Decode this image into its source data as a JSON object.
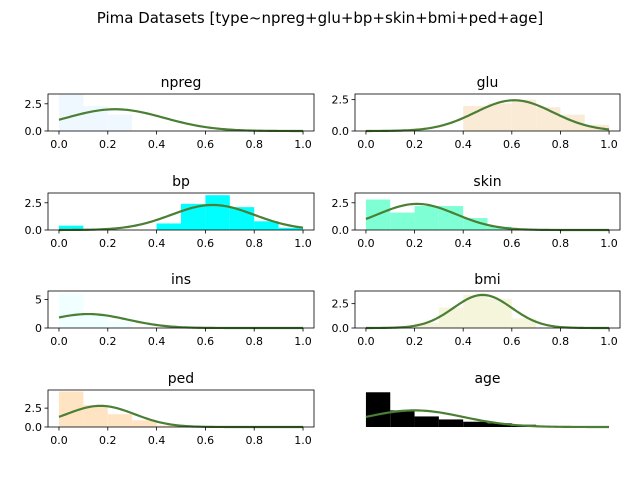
{
  "chart_data": {
    "type": "bar",
    "title": "Pima Datasets [type~npreg+glu+bp+skin+bmi+ped+age]",
    "panels": [
      {
        "title": "npreg",
        "color": "#f0f8ff",
        "curve_color": "#4a7f34",
        "bins": [
          0,
          0.1,
          0.2,
          0.3
        ],
        "heights": [
          3.4,
          2.3,
          1.5
        ],
        "curve": {
          "mu": 0.23,
          "sigma": 0.2,
          "peak": 2.0
        },
        "xlim": [
          0,
          1
        ],
        "ylim": [
          0,
          3.4
        ],
        "yticks": [
          0,
          2.5
        ],
        "ytick_labels": [
          "0.0",
          "2.5"
        ],
        "xticks": [
          0,
          0.2,
          0.4,
          0.6,
          0.8,
          1.0
        ],
        "xtick_labels": [
          "0.0",
          "0.2",
          "0.4",
          "0.6",
          "0.8",
          "1.0"
        ],
        "show_axes": true
      },
      {
        "title": "glu",
        "color": "#faebd7",
        "curve_color": "#4a7f34",
        "bins": [
          0.4,
          0.5,
          0.6,
          0.7,
          0.8,
          0.9,
          1.0
        ],
        "heights": [
          2.0,
          2.2,
          2.5,
          1.9,
          1.3,
          0.5
        ],
        "curve": {
          "mu": 0.61,
          "sigma": 0.16,
          "peak": 2.45
        },
        "xlim": [
          0,
          1
        ],
        "ylim": [
          0,
          2.95
        ],
        "yticks": [
          0,
          2.5
        ],
        "ytick_labels": [
          "0.0",
          "2.5"
        ],
        "xticks": [
          0,
          0.2,
          0.4,
          0.6,
          0.8,
          1.0
        ],
        "xtick_labels": [
          "0.0",
          "0.2",
          "0.4",
          "0.6",
          "0.8",
          "1.0"
        ],
        "show_axes": true
      },
      {
        "title": "bp",
        "color": "#00ffff",
        "curve_color": "#4a7f34",
        "bins": [
          0,
          0.1,
          0.2,
          0.3,
          0.4,
          0.5,
          0.6,
          0.7,
          0.8,
          0.9,
          1.0
        ],
        "heights": [
          0.4,
          0,
          0,
          0,
          0.6,
          2.4,
          3.2,
          2.1,
          0.8,
          0.2
        ],
        "curve": {
          "mu": 0.63,
          "sigma": 0.17,
          "peak": 2.3
        },
        "xlim": [
          0,
          1
        ],
        "ylim": [
          0,
          3.4
        ],
        "yticks": [
          0,
          2.5
        ],
        "ytick_labels": [
          "0.0",
          "2.5"
        ],
        "xticks": [
          0,
          0.2,
          0.4,
          0.6,
          0.8,
          1.0
        ],
        "xtick_labels": [
          "0.0",
          "0.2",
          "0.4",
          "0.6",
          "0.8",
          "1.0"
        ],
        "show_axes": true
      },
      {
        "title": "skin",
        "color": "#7fffd4",
        "curve_color": "#4a7f34",
        "bins": [
          0,
          0.1,
          0.2,
          0.3,
          0.4,
          0.5,
          0.6
        ],
        "heights": [
          2.8,
          1.6,
          2.2,
          2.2,
          1.1,
          0.3
        ],
        "curve": {
          "mu": 0.21,
          "sigma": 0.16,
          "peak": 2.4
        },
        "xlim": [
          0,
          1
        ],
        "ylim": [
          0,
          3.4
        ],
        "yticks": [
          0,
          2.5
        ],
        "ytick_labels": [
          "0.0",
          "2.5"
        ],
        "xticks": [
          0,
          0.2,
          0.4,
          0.6,
          0.8,
          1.0
        ],
        "xtick_labels": [
          "0.0",
          "0.2",
          "0.4",
          "0.6",
          "0.8",
          "1.0"
        ],
        "show_axes": true
      },
      {
        "title": "ins",
        "color": "#f0ffff",
        "curve_color": "#4a7f34",
        "bins": [
          0,
          0.1,
          0.2,
          0.3
        ],
        "heights": [
          6.0,
          2.4,
          1.1
        ],
        "curve": {
          "mu": 0.12,
          "sigma": 0.16,
          "peak": 2.45
        },
        "xlim": [
          0,
          1
        ],
        "ylim": [
          0,
          6.5
        ],
        "yticks": [
          0,
          5
        ],
        "ytick_labels": [
          "0",
          "5"
        ],
        "xticks": [
          0,
          0.2,
          0.4,
          0.6,
          0.8,
          1.0
        ],
        "xtick_labels": [
          "0.0",
          "0.2",
          "0.4",
          "0.6",
          "0.8",
          "1.0"
        ],
        "show_axes": true
      },
      {
        "title": "bmi",
        "color": "#f5f5dc",
        "curve_color": "#4a7f34",
        "bins": [
          0.2,
          0.3,
          0.4,
          0.5,
          0.6,
          0.7
        ],
        "heights": [
          0.5,
          2.1,
          3.4,
          3.0,
          1.0
        ],
        "curve": {
          "mu": 0.48,
          "sigma": 0.12,
          "peak": 3.4
        },
        "xlim": [
          0,
          1
        ],
        "ylim": [
          0,
          3.8
        ],
        "yticks": [
          0,
          2.5
        ],
        "ytick_labels": [
          "0.0",
          "2.5"
        ],
        "xticks": [
          0,
          0.2,
          0.4,
          0.6,
          0.8,
          1.0
        ],
        "xtick_labels": [
          "0.0",
          "0.2",
          "0.4",
          "0.6",
          "0.8",
          "1.0"
        ],
        "show_axes": true
      },
      {
        "title": "ped",
        "color": "#ffe4c4",
        "curve_color": "#4a7f34",
        "bins": [
          0,
          0.1,
          0.2,
          0.3,
          0.4,
          0.5
        ],
        "heights": [
          4.7,
          2.9,
          1.7,
          0.9,
          0.2
        ],
        "curve": {
          "mu": 0.17,
          "sigma": 0.14,
          "peak": 2.8
        },
        "xlim": [
          0,
          1
        ],
        "ylim": [
          0,
          4.9
        ],
        "yticks": [
          0,
          2.5
        ],
        "ytick_labels": [
          "0.0",
          "2.5"
        ],
        "xticks": [
          0,
          0.2,
          0.4,
          0.6,
          0.8,
          1.0
        ],
        "xtick_labels": [
          "0.0",
          "0.2",
          "0.4",
          "0.6",
          "0.8",
          "1.0"
        ],
        "show_axes": true
      },
      {
        "title": "age",
        "color": "#000000",
        "curve_color": "#4a7f34",
        "bins": [
          0,
          0.1,
          0.2,
          0.3,
          0.4,
          0.5,
          0.6,
          0.7
        ],
        "heights": [
          4.6,
          2.2,
          1.4,
          1.0,
          0.7,
          0.5,
          0.3
        ],
        "curve": {
          "mu": 0.2,
          "sigma": 0.2,
          "peak": 2.2
        },
        "xlim": [
          0,
          1
        ],
        "ylim": [
          0,
          4.9
        ],
        "yticks": [],
        "ytick_labels": [],
        "xticks": [],
        "xtick_labels": [],
        "show_axes": false
      }
    ]
  }
}
